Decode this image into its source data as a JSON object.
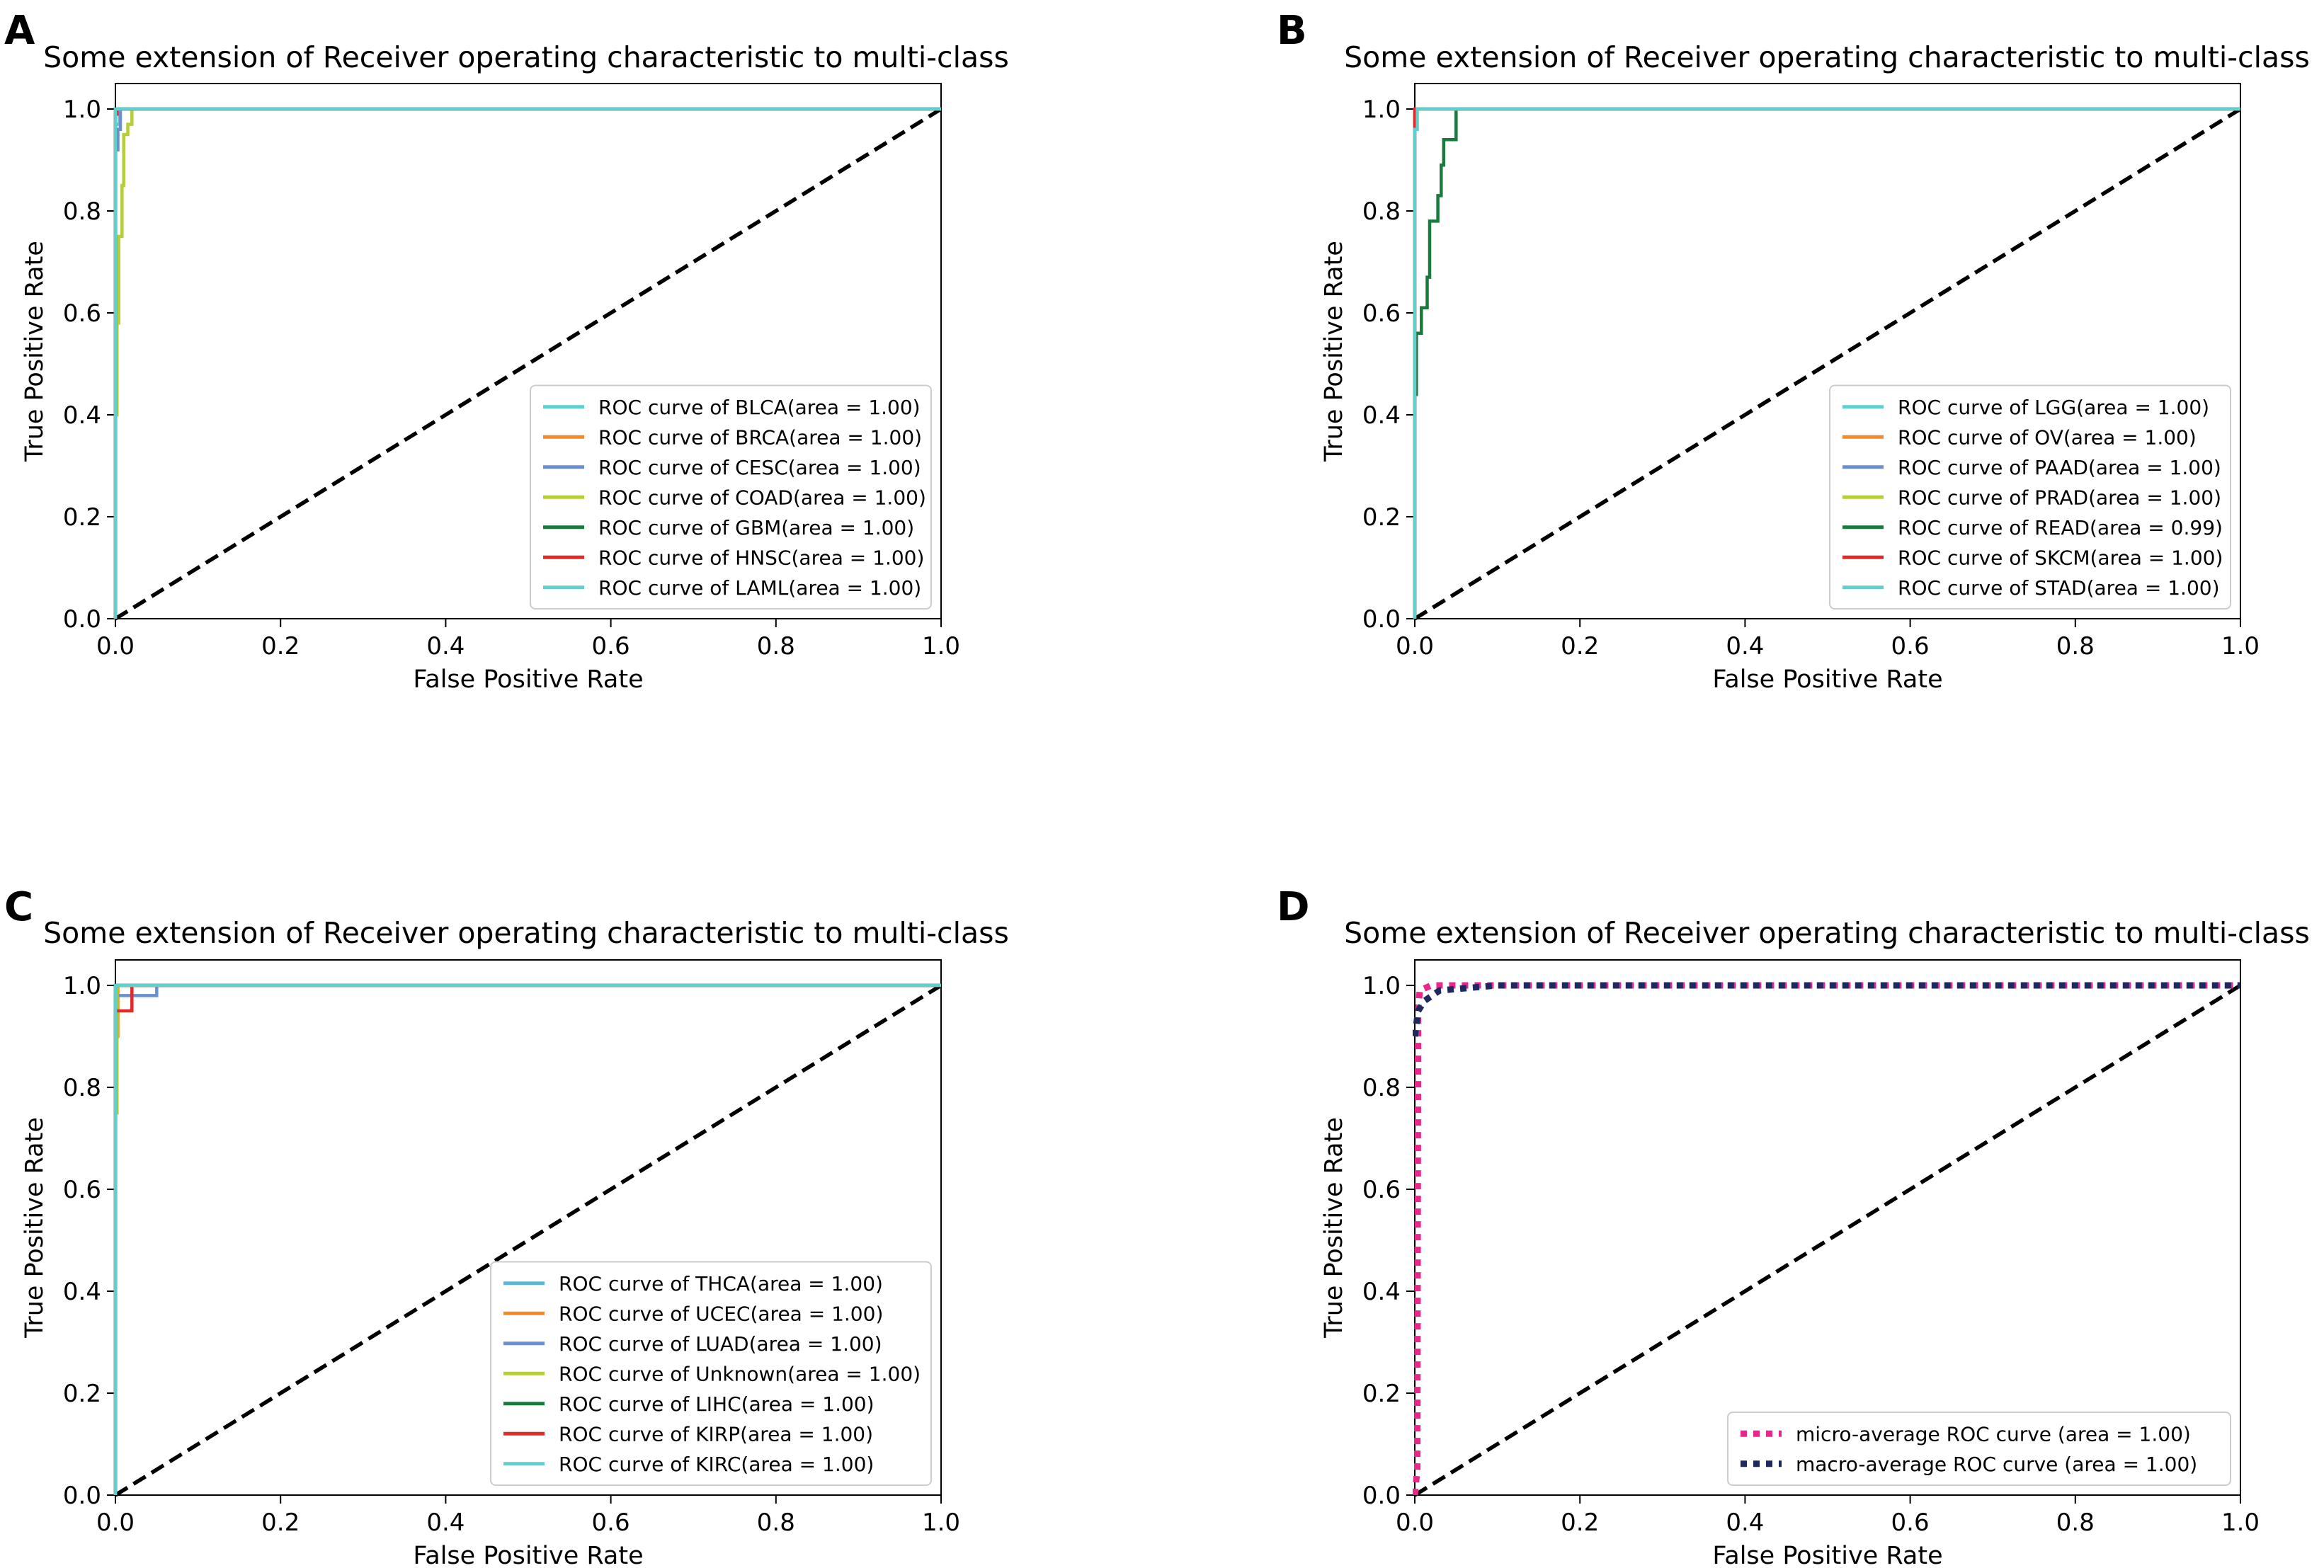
{
  "chart_data": [
    {
      "panel": "A",
      "type": "line",
      "title": "Some extension of Receiver operating characteristic to multi-class",
      "xlabel": "False Positive Rate",
      "ylabel": "True Positive Rate",
      "xlim": [
        0.0,
        1.0
      ],
      "ylim": [
        0.0,
        1.05
      ],
      "xticks": [
        "0.0",
        "0.2",
        "0.4",
        "0.6",
        "0.8",
        "1.0"
      ],
      "yticks": [
        "0.0",
        "0.2",
        "0.4",
        "0.6",
        "0.8",
        "1.0"
      ],
      "legend_position": "lower-right",
      "series": [
        {
          "name": "ROC curve of BLCA(area = 1.00)",
          "color": "#5fcfcf",
          "dash": "solid",
          "points": [
            [
              0,
              0
            ],
            [
              0,
              0.97
            ],
            [
              0.005,
              0.97
            ],
            [
              0.005,
              1.0
            ],
            [
              1,
              1
            ]
          ]
        },
        {
          "name": "ROC curve of BRCA(area = 1.00)",
          "color": "#f28a28",
          "dash": "solid",
          "points": [
            [
              0,
              0
            ],
            [
              0,
              0.99
            ],
            [
              0.004,
              0.99
            ],
            [
              0.004,
              1.0
            ],
            [
              1,
              1
            ]
          ]
        },
        {
          "name": "ROC curve of CESC(area = 1.00)",
          "color": "#6b8fcf",
          "dash": "solid",
          "points": [
            [
              0,
              0
            ],
            [
              0,
              0.92
            ],
            [
              0.003,
              0.92
            ],
            [
              0.003,
              0.96
            ],
            [
              0.006,
              0.96
            ],
            [
              0.006,
              1.0
            ],
            [
              1,
              1
            ]
          ]
        },
        {
          "name": "ROC curve of COAD(area = 1.00)",
          "color": "#b5cf3a",
          "dash": "solid",
          "points": [
            [
              0,
              0
            ],
            [
              0,
              0.4
            ],
            [
              0.002,
              0.4
            ],
            [
              0.002,
              0.58
            ],
            [
              0.004,
              0.58
            ],
            [
              0.004,
              0.75
            ],
            [
              0.008,
              0.75
            ],
            [
              0.008,
              0.85
            ],
            [
              0.01,
              0.85
            ],
            [
              0.01,
              0.95
            ],
            [
              0.015,
              0.95
            ],
            [
              0.015,
              0.97
            ],
            [
              0.02,
              0.97
            ],
            [
              0.02,
              1.0
            ],
            [
              1,
              1
            ]
          ]
        },
        {
          "name": "ROC curve of GBM(area = 1.00)",
          "color": "#1a7a3e",
          "dash": "solid",
          "points": [
            [
              0,
              0
            ],
            [
              0,
              1.0
            ],
            [
              1,
              1
            ]
          ]
        },
        {
          "name": "ROC curve of HNSC(area = 1.00)",
          "color": "#e02a2a",
          "dash": "solid",
          "points": [
            [
              0,
              0
            ],
            [
              0,
              0.99
            ],
            [
              0.002,
              0.99
            ],
            [
              0.002,
              1.0
            ],
            [
              1,
              1
            ]
          ]
        },
        {
          "name": "ROC curve of LAML(area = 1.00)",
          "color": "#5fcfcf",
          "dash": "solid",
          "points": [
            [
              0,
              0
            ],
            [
              0,
              1.0
            ],
            [
              1,
              1
            ]
          ]
        }
      ]
    },
    {
      "panel": "B",
      "type": "line",
      "title": "Some extension of Receiver operating characteristic to multi-class",
      "xlabel": "False Positive Rate",
      "ylabel": "True Positive Rate",
      "xlim": [
        0.0,
        1.0
      ],
      "ylim": [
        0.0,
        1.05
      ],
      "xticks": [
        "0.0",
        "0.2",
        "0.4",
        "0.6",
        "0.8",
        "1.0"
      ],
      "yticks": [
        "0.0",
        "0.2",
        "0.4",
        "0.6",
        "0.8",
        "1.0"
      ],
      "legend_position": "lower-right",
      "series": [
        {
          "name": "ROC curve of LGG(area = 1.00)",
          "color": "#5fcfcf",
          "dash": "solid",
          "points": [
            [
              0,
              0
            ],
            [
              0,
              1.0
            ],
            [
              1,
              1
            ]
          ]
        },
        {
          "name": "ROC curve of OV(area = 1.00)",
          "color": "#f28a28",
          "dash": "solid",
          "points": [
            [
              0,
              0
            ],
            [
              0,
              1.0
            ],
            [
              1,
              1
            ]
          ]
        },
        {
          "name": "ROC curve of PAAD(area = 1.00)",
          "color": "#6b8fcf",
          "dash": "solid",
          "points": [
            [
              0,
              0
            ],
            [
              0,
              1.0
            ],
            [
              1,
              1
            ]
          ]
        },
        {
          "name": "ROC curve of PRAD(area = 1.00)",
          "color": "#b5cf3a",
          "dash": "solid",
          "points": [
            [
              0,
              0
            ],
            [
              0,
              1.0
            ],
            [
              1,
              1
            ]
          ]
        },
        {
          "name": "ROC curve of READ(area = 0.99)",
          "color": "#1a7a3e",
          "dash": "solid",
          "points": [
            [
              0,
              0
            ],
            [
              0,
              0.44
            ],
            [
              0.002,
              0.44
            ],
            [
              0.002,
              0.56
            ],
            [
              0.008,
              0.56
            ],
            [
              0.008,
              0.61
            ],
            [
              0.015,
              0.61
            ],
            [
              0.015,
              0.67
            ],
            [
              0.018,
              0.67
            ],
            [
              0.018,
              0.78
            ],
            [
              0.028,
              0.78
            ],
            [
              0.028,
              0.83
            ],
            [
              0.032,
              0.83
            ],
            [
              0.032,
              0.89
            ],
            [
              0.035,
              0.89
            ],
            [
              0.035,
              0.94
            ],
            [
              0.05,
              0.94
            ],
            [
              0.05,
              1.0
            ],
            [
              1,
              1
            ]
          ]
        },
        {
          "name": "ROC curve of SKCM(area = 1.00)",
          "color": "#e02a2a",
          "dash": "solid",
          "points": [
            [
              0,
              0
            ],
            [
              0,
              1.0
            ],
            [
              1,
              1
            ]
          ]
        },
        {
          "name": "ROC curve of STAD(area = 1.00)",
          "color": "#5fcfcf",
          "dash": "solid",
          "points": [
            [
              0,
              0
            ],
            [
              0,
              0.96
            ],
            [
              0.003,
              0.96
            ],
            [
              0.003,
              1.0
            ],
            [
              1,
              1
            ]
          ]
        }
      ]
    },
    {
      "panel": "C",
      "type": "line",
      "title": "Some extension of Receiver operating characteristic to multi-class",
      "xlabel": "False Positive Rate",
      "ylabel": "True Positive Rate",
      "xlim": [
        0.0,
        1.0
      ],
      "ylim": [
        0.0,
        1.05
      ],
      "xticks": [
        "0.0",
        "0.2",
        "0.4",
        "0.6",
        "0.8",
        "1.0"
      ],
      "yticks": [
        "0.0",
        "0.2",
        "0.4",
        "0.6",
        "0.8",
        "1.0"
      ],
      "legend_position": "lower-right",
      "series": [
        {
          "name": "ROC curve of THCA(area = 1.00)",
          "color": "#5fb5d9",
          "dash": "solid",
          "points": [
            [
              0,
              0
            ],
            [
              0,
              1.0
            ],
            [
              1,
              1
            ]
          ]
        },
        {
          "name": "ROC curve of UCEC(area = 1.00)",
          "color": "#f28a28",
          "dash": "solid",
          "points": [
            [
              0,
              0
            ],
            [
              0,
              0.9
            ],
            [
              0.003,
              0.9
            ],
            [
              0.003,
              1.0
            ],
            [
              1,
              1
            ]
          ]
        },
        {
          "name": "ROC curve of LUAD(area = 1.00)",
          "color": "#6b8fcf",
          "dash": "solid",
          "points": [
            [
              0,
              0
            ],
            [
              0,
              0.98
            ],
            [
              0.05,
              0.98
            ],
            [
              0.05,
              1.0
            ],
            [
              1,
              1
            ]
          ]
        },
        {
          "name": "ROC curve of Unknown(area = 1.00)",
          "color": "#b5cf3a",
          "dash": "solid",
          "points": [
            [
              0,
              0
            ],
            [
              0,
              0.75
            ],
            [
              0.002,
              0.75
            ],
            [
              0.002,
              1.0
            ],
            [
              1,
              1
            ]
          ]
        },
        {
          "name": "ROC curve of LIHC(area = 1.00)",
          "color": "#1a7a3e",
          "dash": "solid",
          "points": [
            [
              0,
              0
            ],
            [
              0,
              1.0
            ],
            [
              1,
              1
            ]
          ]
        },
        {
          "name": "ROC curve of KIRP(area = 1.00)",
          "color": "#e02a2a",
          "dash": "solid",
          "points": [
            [
              0,
              0
            ],
            [
              0,
              0.95
            ],
            [
              0.02,
              0.95
            ],
            [
              0.02,
              1.0
            ],
            [
              1,
              1
            ]
          ]
        },
        {
          "name": "ROC curve of KIRC(area = 1.00)",
          "color": "#5fcfcf",
          "dash": "solid",
          "points": [
            [
              0,
              0
            ],
            [
              0,
              1.0
            ],
            [
              1,
              1
            ]
          ]
        }
      ]
    },
    {
      "panel": "D",
      "type": "line",
      "title": "Some extension of Receiver operating characteristic to multi-class",
      "xlabel": "False Positive Rate",
      "ylabel": "True Positive Rate",
      "xlim": [
        0.0,
        1.0
      ],
      "ylim": [
        0.0,
        1.05
      ],
      "xticks": [
        "0.0",
        "0.2",
        "0.4",
        "0.6",
        "0.8",
        "1.0"
      ],
      "yticks": [
        "0.0",
        "0.2",
        "0.4",
        "0.6",
        "0.8",
        "1.0"
      ],
      "legend_position": "lower-right",
      "series": [
        {
          "name": "micro-average ROC curve (area = 1.00)",
          "color": "#e8268c",
          "dash": "dotted",
          "points": [
            [
              0,
              0
            ],
            [
              0.003,
              0.05
            ],
            [
              0.004,
              0.95
            ],
            [
              0.006,
              0.99
            ],
            [
              0.02,
              1.0
            ],
            [
              1,
              1
            ]
          ]
        },
        {
          "name": "macro-average ROC curve (area = 1.00)",
          "color": "#1e2a5e",
          "dash": "dotted",
          "points": [
            [
              0,
              0.9
            ],
            [
              0.004,
              0.95
            ],
            [
              0.012,
              0.97
            ],
            [
              0.03,
              0.99
            ],
            [
              0.1,
              1.0
            ],
            [
              1,
              1
            ]
          ]
        }
      ]
    }
  ]
}
